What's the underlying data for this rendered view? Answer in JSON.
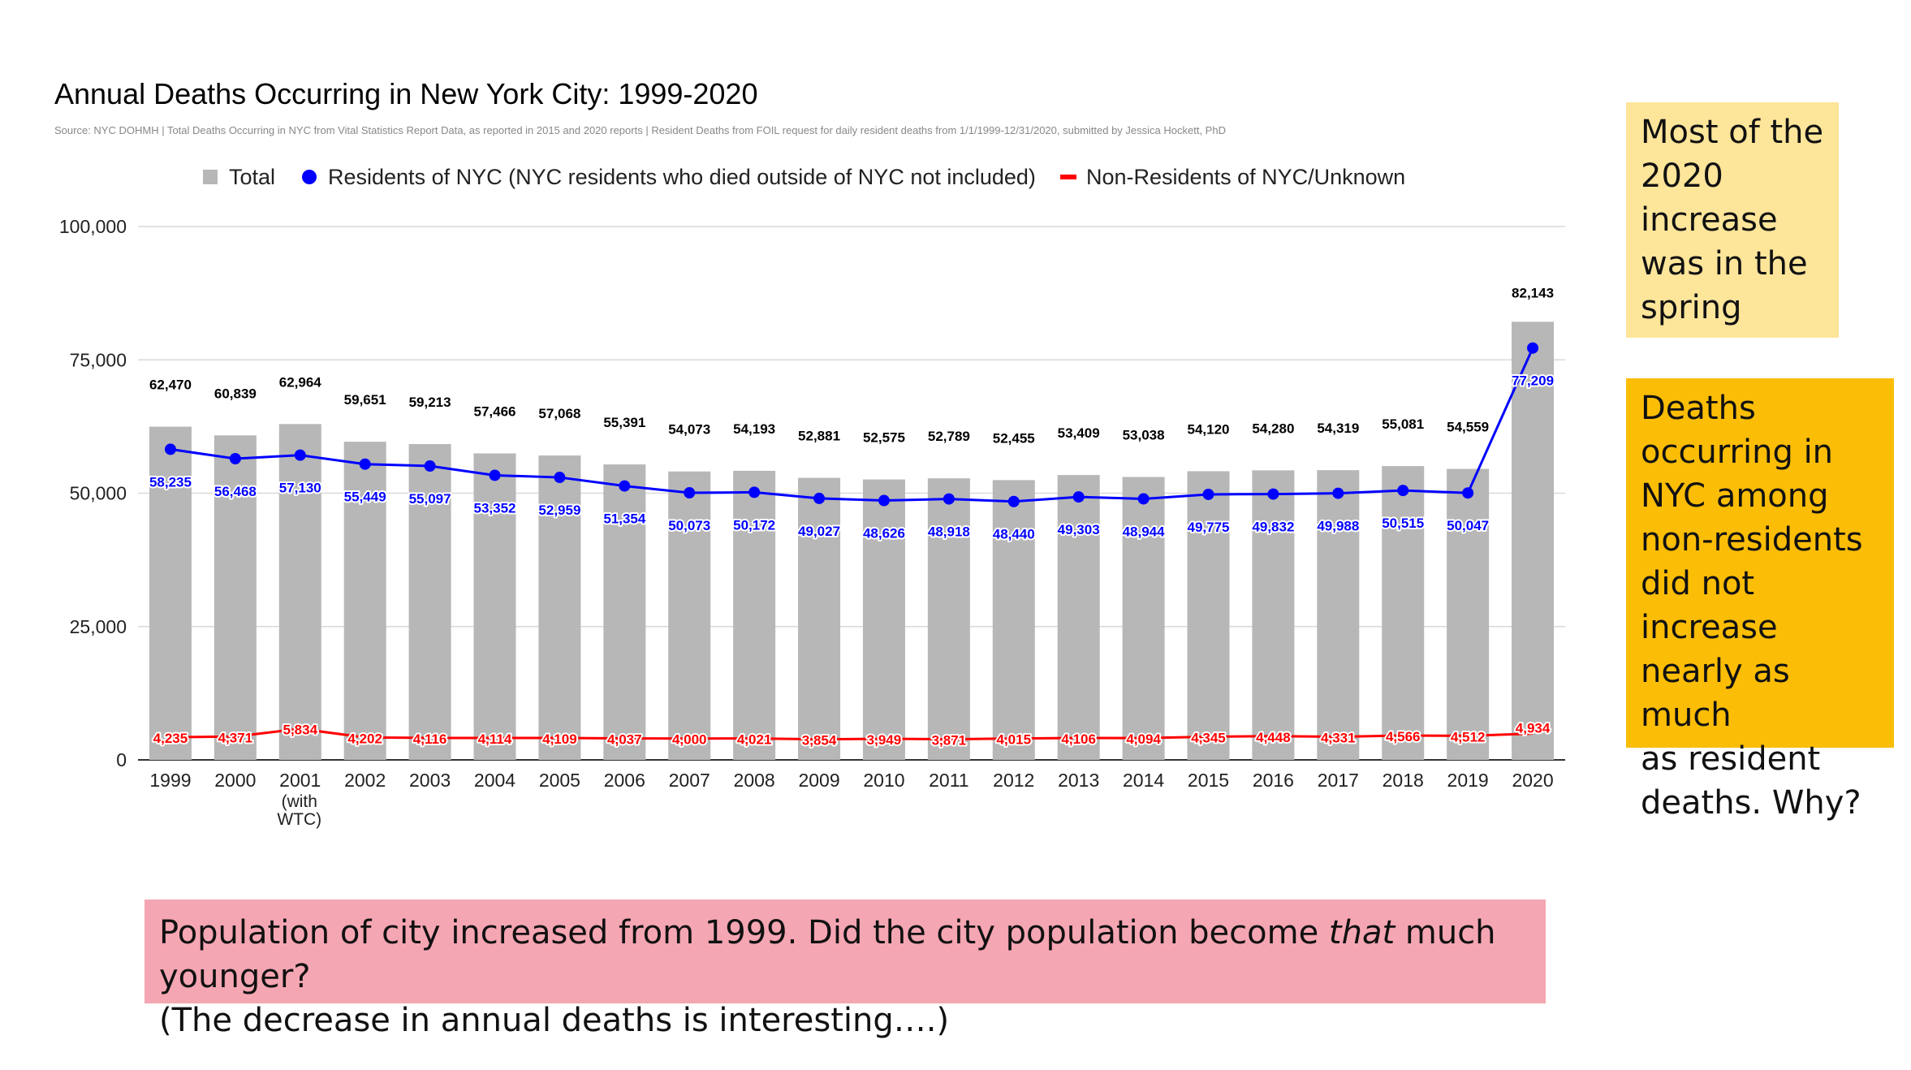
{
  "chart_data": {
    "type": "bar",
    "title": "Annual Deaths Occurring in New York City: 1999-2020",
    "subtitle": "Source: NYC DOHMH | Total Deaths Occurring in NYC from Vital Statistics Report Data, as reported in 2015 and 2020 reports | Resident Deaths from FOIL request for daily resident deaths from 1/1/1999-12/31/2020, submitted by Jessica Hockett, PhD",
    "categories": [
      "1999",
      "2000",
      "2001",
      "2002",
      "2003",
      "2004",
      "2005",
      "2006",
      "2007",
      "2008",
      "2009",
      "2010",
      "2011",
      "2012",
      "2013",
      "2014",
      "2015",
      "2016",
      "2017",
      "2018",
      "2019",
      "2020"
    ],
    "category_sublabels": {
      "2": [
        "(with",
        "WTC)"
      ]
    },
    "ylim": [
      0,
      100000
    ],
    "yticks": [
      0,
      25000,
      50000,
      75000,
      100000
    ],
    "ytick_labels": [
      "0",
      "25,000",
      "50,000",
      "75,000",
      "100,000"
    ],
    "legend_position": "top-center",
    "grid": true,
    "series": [
      {
        "name": "Total",
        "kind": "bar",
        "color": "#b7b7b7",
        "label_color": "#000000",
        "values": [
          62470,
          60839,
          62964,
          59651,
          59213,
          57466,
          57068,
          55391,
          54073,
          54193,
          52881,
          52575,
          52789,
          52455,
          53409,
          53038,
          54120,
          54280,
          54319,
          55081,
          54559,
          82143
        ],
        "labels": [
          "62,470",
          "60,839",
          "62,964",
          "59,651",
          "59,213",
          "57,466",
          "57,068",
          "55,391",
          "54,073",
          "54,193",
          "52,881",
          "52,575",
          "52,789",
          "52,455",
          "53,409",
          "53,038",
          "54,120",
          "54,280",
          "54,319",
          "55,081",
          "54,559",
          "82,143"
        ]
      },
      {
        "name": "Residents of NYC (NYC residents who died outside of NYC not included)",
        "kind": "line",
        "color": "#0000ff",
        "values": [
          58235,
          56468,
          57130,
          55449,
          55097,
          53352,
          52959,
          51354,
          50073,
          50172,
          49027,
          48626,
          48918,
          48440,
          49303,
          48944,
          49775,
          49832,
          49988,
          50515,
          50047,
          77209
        ],
        "labels": [
          "58,235",
          "56,468",
          "57,130",
          "55,449",
          "55,097",
          "53,352",
          "52,959",
          "51,354",
          "50,073",
          "50,172",
          "49,027",
          "48,626",
          "48,918",
          "48,440",
          "49,303",
          "48,944",
          "49,775",
          "49,832",
          "49,988",
          "50,515",
          "50,047",
          "77,209"
        ]
      },
      {
        "name": "Non-Residents of NYC/Unknown",
        "kind": "line",
        "color": "#ff0000",
        "values": [
          4235,
          4371,
          5834,
          4202,
          4116,
          4114,
          4109,
          4037,
          4000,
          4021,
          3854,
          3949,
          3871,
          4015,
          4106,
          4094,
          4345,
          4448,
          4331,
          4566,
          4512,
          4934
        ],
        "labels": [
          "4,235",
          "4,371",
          "5,834",
          "4,202",
          "4,116",
          "4,114",
          "4,109",
          "4,037",
          "4,000",
          "4,021",
          "3,854",
          "3,949",
          "3,871",
          "4,015",
          "4,106",
          "4,094",
          "4,345",
          "4,448",
          "4,331",
          "4,566",
          "4,512",
          "4,934"
        ]
      }
    ]
  },
  "notes": {
    "spring": [
      "Most of the",
      "2020",
      "increase",
      "was in the",
      "spring"
    ],
    "nonresidents": [
      "Deaths",
      "occurring in",
      "NYC among",
      "non-residents",
      "did not increase",
      "nearly as much",
      "as resident",
      "deaths. Why?"
    ],
    "population": {
      "line1_before": "Population of city increased from 1999. Did the city population become ",
      "line1_emphasis": "that",
      "line1_after": " much younger?",
      "line2": "(The decrease in annual deaths is interesting….)"
    }
  },
  "colors": {
    "spring_note_bg": "#fde59a",
    "nonresidents_note_bg": "#fbbd06",
    "population_note_bg": "#f5a6b3",
    "gridline": "#d9d9d9"
  }
}
